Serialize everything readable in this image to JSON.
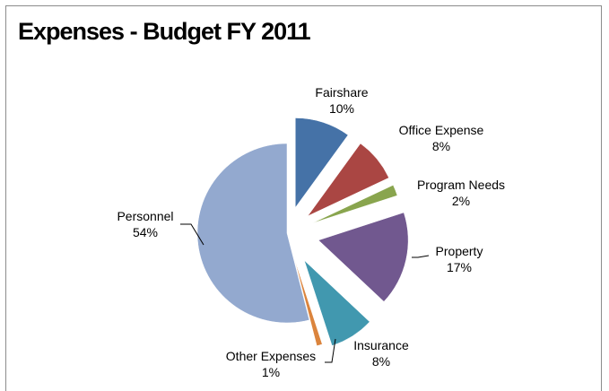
{
  "chart_data": {
    "type": "pie",
    "title": "Expenses - Budget FY 2011",
    "slices": [
      {
        "name": "Fairshare",
        "percent": 10,
        "label": "10%",
        "color": "#4572a7"
      },
      {
        "name": "Office Expense",
        "percent": 8,
        "label": "8%",
        "color": "#aa4643"
      },
      {
        "name": "Program Needs",
        "percent": 2,
        "label": "2%",
        "color": "#89a54e"
      },
      {
        "name": "Property",
        "percent": 17,
        "label": "17%",
        "color": "#71588f"
      },
      {
        "name": "Insurance",
        "percent": 8,
        "label": "8%",
        "color": "#4198af"
      },
      {
        "name": "Other Expenses",
        "percent": 1,
        "label": "1%",
        "color": "#db843d"
      },
      {
        "name": "Personnel",
        "percent": 54,
        "label": "54%",
        "color": "#93a9cf"
      }
    ],
    "legend": "none",
    "exploded": true
  }
}
